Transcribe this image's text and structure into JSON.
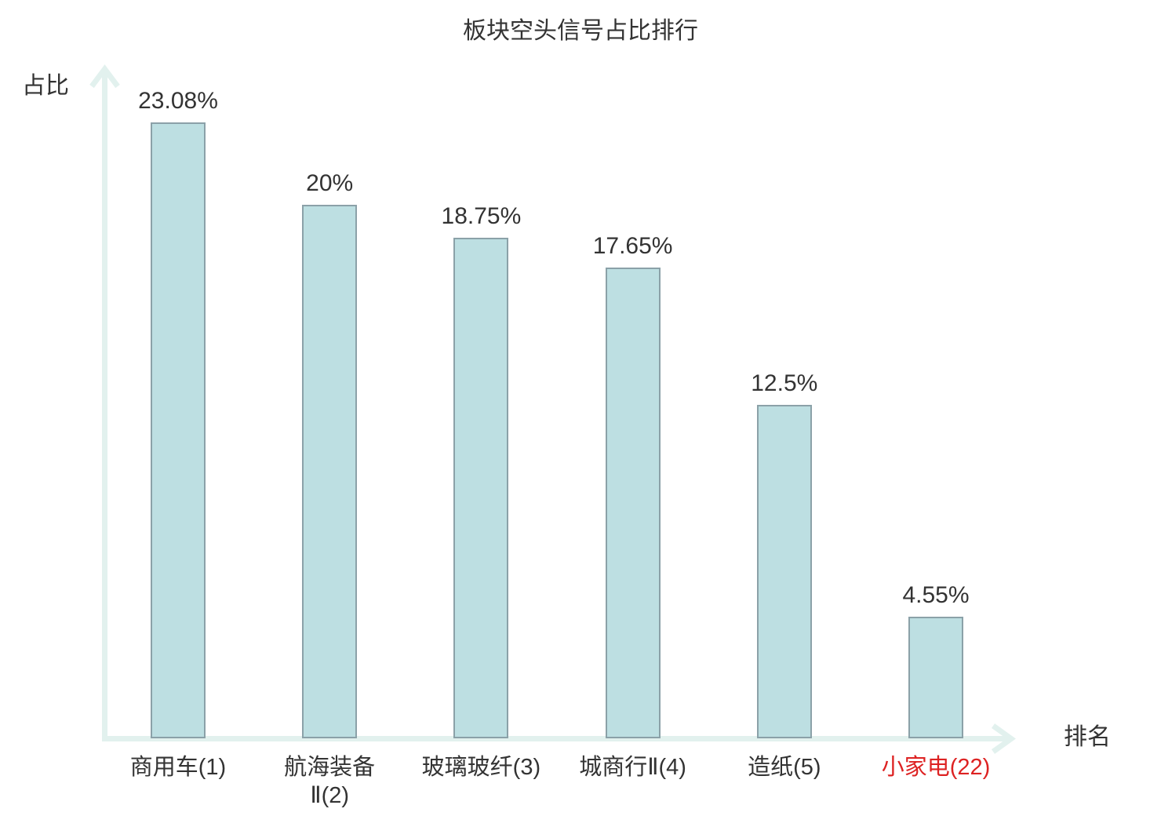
{
  "title": "板块空头信号占比排行",
  "axes": {
    "y_label": "占比",
    "x_label": "排名"
  },
  "chart_data": {
    "type": "bar",
    "title": "板块空头信号占比排行",
    "xlabel": "排名",
    "ylabel": "占比",
    "categories": [
      "商用车(1)",
      "航海装备Ⅱ(2)",
      "玻璃玻纤(3)",
      "城商行Ⅱ(4)",
      "造纸(5)",
      "小家电(22)"
    ],
    "category_lines": [
      [
        "商用车(1)"
      ],
      [
        "航海装备",
        "Ⅱ(2)"
      ],
      [
        "玻璃玻纤(3)"
      ],
      [
        "城商行Ⅱ(4)"
      ],
      [
        "造纸(5)"
      ],
      [
        "小家电(22)"
      ]
    ],
    "ranks": [
      1,
      2,
      3,
      4,
      5,
      22
    ],
    "values": [
      23.08,
      20,
      18.75,
      17.65,
      12.5,
      4.55
    ],
    "value_labels": [
      "23.08%",
      "20%",
      "18.75%",
      "17.65%",
      "12.5%",
      "4.55%"
    ],
    "highlight_index": 5,
    "ylim": [
      0,
      25
    ],
    "grid": false,
    "legend": null
  },
  "colors": {
    "background": "#ffffff",
    "bar_fill": "#bddfe2",
    "bar_border": "#8ba1a8",
    "axis": "#e2f1ee",
    "text": "#333333",
    "highlight": "#dd2222"
  }
}
